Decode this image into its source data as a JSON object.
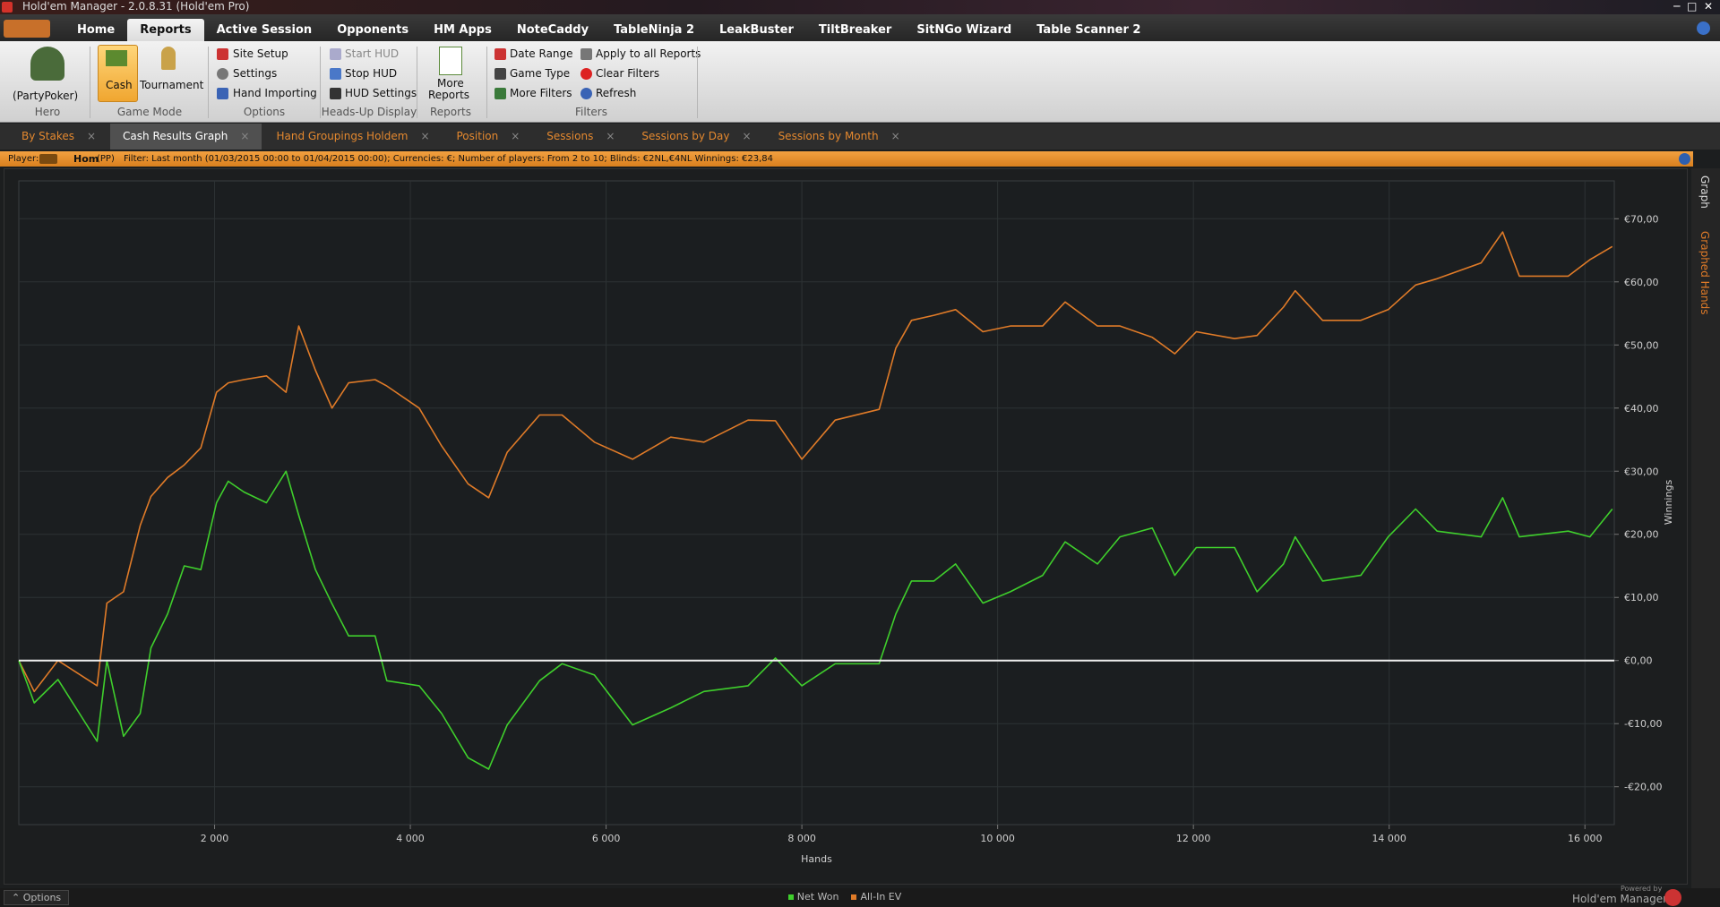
{
  "window": {
    "title": "Hold'em Manager - 2.0.8.31 (Hold'em Pro)"
  },
  "menu": [
    "Home",
    "Reports",
    "Active Session",
    "Opponents",
    "HM Apps",
    "NoteCaddy",
    "TableNinja 2",
    "LeakBuster",
    "TiltBreaker",
    "SitNGo Wizard",
    "Table Scanner 2"
  ],
  "ribbon": {
    "groups": [
      {
        "label": "Hero",
        "items": [
          "(PartyPoker)"
        ]
      },
      {
        "label": "Game Mode",
        "items": [
          "Cash",
          "Tournament"
        ]
      },
      {
        "label": "Options",
        "items": [
          "Site Setup",
          "Settings",
          "Hand Importing"
        ]
      },
      {
        "label": "Heads-Up Display",
        "items": [
          "Start HUD",
          "Stop HUD",
          "HUD Settings"
        ]
      },
      {
        "label": "Reports",
        "items": [
          "More",
          "Reports"
        ]
      },
      {
        "label": "Filters",
        "items": [
          "Date Range",
          "Game Type",
          "More Filters",
          "Apply to all Reports",
          "Clear Filters",
          "Refresh"
        ]
      }
    ]
  },
  "tabs": [
    "By Stakes",
    "Cash Results Graph",
    "Hand Groupings Holdem",
    "Position",
    "Sessions",
    "Sessions by Day",
    "Sessions by Month"
  ],
  "filter_bar": {
    "player": "Player:",
    "hero": "Hom",
    "site": "(PP)",
    "filter": "Filter:  Last month (01/03/2015 00:00 to 01/04/2015 00:00); Currencies: €; Number of players: From 2 to 10; Blinds: €2NL,€4NL  Winnings:  €23,84"
  },
  "side_tabs": [
    "Graph",
    "Graphed Hands"
  ],
  "footer": {
    "options": "Options",
    "powered_by": "Powered by",
    "brand": "Hold'em Manager"
  },
  "chart_data": {
    "type": "line",
    "x_label": "Hands",
    "y_label": "Winnings",
    "grid": true,
    "legend": "bottom",
    "x": [
      0,
      157,
      400,
      800,
      900,
      1070,
      1240,
      1350,
      1520,
      1690,
      1860,
      2020,
      2140,
      2300,
      2530,
      2730,
      2860,
      3030,
      3200,
      3370,
      3640,
      3760,
      4090,
      4320,
      4590,
      4800,
      4990,
      5320,
      5550,
      5880,
      6270,
      6660,
      7000,
      7450,
      7730,
      8000,
      8340,
      8790,
      8960,
      9120,
      9350,
      9570,
      9850,
      10130,
      10460,
      10690,
      11020,
      11250,
      11580,
      11810,
      12030,
      12420,
      12650,
      12920,
      13040,
      13320,
      13710,
      13990,
      14270,
      14490,
      14940,
      15160,
      15330,
      15830,
      16050,
      16280
    ],
    "series": [
      {
        "name": "Net Won",
        "color": "#3fcf2c",
        "values": [
          0,
          -6.7,
          -3,
          -12.8,
          0,
          -12,
          -8.4,
          2,
          7.4,
          15,
          14.4,
          25,
          28.4,
          26.7,
          25,
          30,
          23,
          14.4,
          9,
          3.9,
          3.9,
          -3.2,
          -4,
          -8.4,
          -15.4,
          -17.2,
          -10.2,
          -3.2,
          -0.5,
          -2.3,
          -10.2,
          -7.5,
          -4.9,
          -4,
          0.4,
          -4,
          -0.5,
          -0.5,
          7.4,
          12.6,
          12.6,
          15.3,
          9.1,
          10.9,
          13.5,
          18.8,
          15.3,
          19.6,
          21,
          13.5,
          17.9,
          17.9,
          10.9,
          15.3,
          19.6,
          12.6,
          13.5,
          19.6,
          24,
          20.5,
          19.6,
          25.8,
          19.6,
          20.5,
          19.6,
          24
        ]
      },
      {
        "name": "All-In EV",
        "color": "#e07b28",
        "values": [
          0,
          -4.9,
          0,
          -4,
          9.1,
          10.9,
          21.4,
          26,
          29,
          31,
          33.7,
          42.5,
          44,
          44.5,
          45.1,
          42.5,
          53,
          46,
          40,
          44,
          44.5,
          43.5,
          40,
          34,
          28,
          25.8,
          33,
          38.9,
          38.9,
          34.6,
          31.9,
          35.4,
          34.6,
          38.1,
          38,
          31.9,
          38.1,
          39.8,
          49.5,
          53.9,
          54.7,
          55.6,
          52.1,
          53,
          53,
          56.8,
          53,
          53,
          51.2,
          48.6,
          52.1,
          51,
          51.5,
          56,
          58.6,
          53.9,
          53.9,
          55.6,
          59.5,
          60.5,
          63,
          67.9,
          60.9,
          60.9,
          63.5,
          65.6
        ]
      }
    ],
    "xlim": [
      0,
      16300
    ],
    "ylim": [
      -26,
      76
    ],
    "xticks": [
      {
        "value": 2000,
        "label": "2 000"
      },
      {
        "value": 4000,
        "label": "4 000"
      },
      {
        "value": 6000,
        "label": "6 000"
      },
      {
        "value": 8000,
        "label": "8 000"
      },
      {
        "value": 10000,
        "label": "10 000"
      },
      {
        "value": 12000,
        "label": "12 000"
      },
      {
        "value": 14000,
        "label": "14 000"
      },
      {
        "value": 16000,
        "label": "16 000"
      }
    ],
    "yticks": [
      {
        "value": -20,
        "label": "-€20,00"
      },
      {
        "value": -10,
        "label": "-€10,00"
      },
      {
        "value": 0,
        "label": "€0,00"
      },
      {
        "value": 10,
        "label": "€10,00"
      },
      {
        "value": 20,
        "label": "€20,00"
      },
      {
        "value": 30,
        "label": "€30,00"
      },
      {
        "value": 40,
        "label": "€40,00"
      },
      {
        "value": 50,
        "label": "€50,00"
      },
      {
        "value": 60,
        "label": "€60,00"
      },
      {
        "value": 70,
        "label": "€70,00"
      }
    ]
  }
}
